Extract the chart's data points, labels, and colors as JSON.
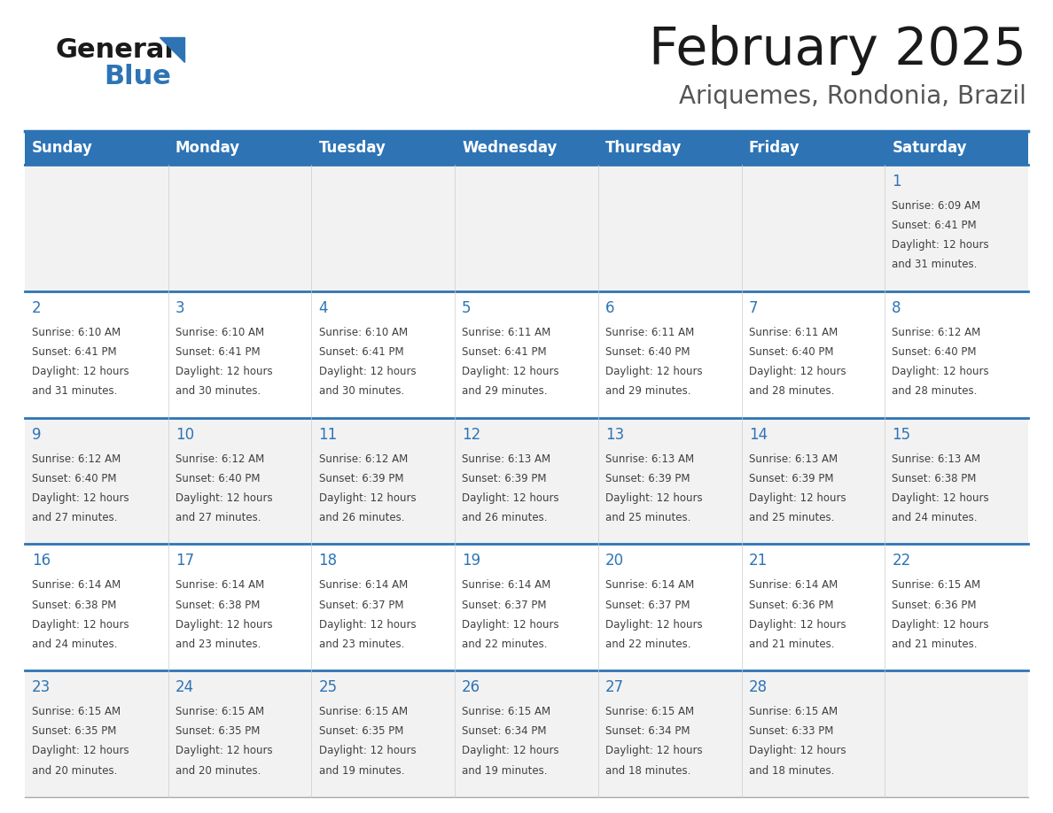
{
  "title": "February 2025",
  "subtitle": "Ariquemes, Rondonia, Brazil",
  "days_of_week": [
    "Sunday",
    "Monday",
    "Tuesday",
    "Wednesday",
    "Thursday",
    "Friday",
    "Saturday"
  ],
  "header_bg": "#2E74B5",
  "header_text": "#FFFFFF",
  "cell_bg_white": "#FFFFFF",
  "cell_bg_gray": "#F2F2F2",
  "border_color": "#2E74B5",
  "day_number_color": "#2E74B5",
  "text_color": "#404040",
  "title_color": "#1a1a1a",
  "subtitle_color": "#555555",
  "logo_general_color": "#1a1a1a",
  "logo_blue_color": "#2E74B5",
  "logo_triangle_color": "#2E74B5",
  "calendar_data": [
    [
      null,
      null,
      null,
      null,
      null,
      null,
      {
        "day": "1",
        "sunrise": "6:09 AM",
        "sunset": "6:41 PM",
        "dl1": "Daylight: 12 hours",
        "dl2": "and 31 minutes."
      }
    ],
    [
      {
        "day": "2",
        "sunrise": "6:10 AM",
        "sunset": "6:41 PM",
        "dl1": "Daylight: 12 hours",
        "dl2": "and 31 minutes."
      },
      {
        "day": "3",
        "sunrise": "6:10 AM",
        "sunset": "6:41 PM",
        "dl1": "Daylight: 12 hours",
        "dl2": "and 30 minutes."
      },
      {
        "day": "4",
        "sunrise": "6:10 AM",
        "sunset": "6:41 PM",
        "dl1": "Daylight: 12 hours",
        "dl2": "and 30 minutes."
      },
      {
        "day": "5",
        "sunrise": "6:11 AM",
        "sunset": "6:41 PM",
        "dl1": "Daylight: 12 hours",
        "dl2": "and 29 minutes."
      },
      {
        "day": "6",
        "sunrise": "6:11 AM",
        "sunset": "6:40 PM",
        "dl1": "Daylight: 12 hours",
        "dl2": "and 29 minutes."
      },
      {
        "day": "7",
        "sunrise": "6:11 AM",
        "sunset": "6:40 PM",
        "dl1": "Daylight: 12 hours",
        "dl2": "and 28 minutes."
      },
      {
        "day": "8",
        "sunrise": "6:12 AM",
        "sunset": "6:40 PM",
        "dl1": "Daylight: 12 hours",
        "dl2": "and 28 minutes."
      }
    ],
    [
      {
        "day": "9",
        "sunrise": "6:12 AM",
        "sunset": "6:40 PM",
        "dl1": "Daylight: 12 hours",
        "dl2": "and 27 minutes."
      },
      {
        "day": "10",
        "sunrise": "6:12 AM",
        "sunset": "6:40 PM",
        "dl1": "Daylight: 12 hours",
        "dl2": "and 27 minutes."
      },
      {
        "day": "11",
        "sunrise": "6:12 AM",
        "sunset": "6:39 PM",
        "dl1": "Daylight: 12 hours",
        "dl2": "and 26 minutes."
      },
      {
        "day": "12",
        "sunrise": "6:13 AM",
        "sunset": "6:39 PM",
        "dl1": "Daylight: 12 hours",
        "dl2": "and 26 minutes."
      },
      {
        "day": "13",
        "sunrise": "6:13 AM",
        "sunset": "6:39 PM",
        "dl1": "Daylight: 12 hours",
        "dl2": "and 25 minutes."
      },
      {
        "day": "14",
        "sunrise": "6:13 AM",
        "sunset": "6:39 PM",
        "dl1": "Daylight: 12 hours",
        "dl2": "and 25 minutes."
      },
      {
        "day": "15",
        "sunrise": "6:13 AM",
        "sunset": "6:38 PM",
        "dl1": "Daylight: 12 hours",
        "dl2": "and 24 minutes."
      }
    ],
    [
      {
        "day": "16",
        "sunrise": "6:14 AM",
        "sunset": "6:38 PM",
        "dl1": "Daylight: 12 hours",
        "dl2": "and 24 minutes."
      },
      {
        "day": "17",
        "sunrise": "6:14 AM",
        "sunset": "6:38 PM",
        "dl1": "Daylight: 12 hours",
        "dl2": "and 23 minutes."
      },
      {
        "day": "18",
        "sunrise": "6:14 AM",
        "sunset": "6:37 PM",
        "dl1": "Daylight: 12 hours",
        "dl2": "and 23 minutes."
      },
      {
        "day": "19",
        "sunrise": "6:14 AM",
        "sunset": "6:37 PM",
        "dl1": "Daylight: 12 hours",
        "dl2": "and 22 minutes."
      },
      {
        "day": "20",
        "sunrise": "6:14 AM",
        "sunset": "6:37 PM",
        "dl1": "Daylight: 12 hours",
        "dl2": "and 22 minutes."
      },
      {
        "day": "21",
        "sunrise": "6:14 AM",
        "sunset": "6:36 PM",
        "dl1": "Daylight: 12 hours",
        "dl2": "and 21 minutes."
      },
      {
        "day": "22",
        "sunrise": "6:15 AM",
        "sunset": "6:36 PM",
        "dl1": "Daylight: 12 hours",
        "dl2": "and 21 minutes."
      }
    ],
    [
      {
        "day": "23",
        "sunrise": "6:15 AM",
        "sunset": "6:35 PM",
        "dl1": "Daylight: 12 hours",
        "dl2": "and 20 minutes."
      },
      {
        "day": "24",
        "sunrise": "6:15 AM",
        "sunset": "6:35 PM",
        "dl1": "Daylight: 12 hours",
        "dl2": "and 20 minutes."
      },
      {
        "day": "25",
        "sunrise": "6:15 AM",
        "sunset": "6:35 PM",
        "dl1": "Daylight: 12 hours",
        "dl2": "and 19 minutes."
      },
      {
        "day": "26",
        "sunrise": "6:15 AM",
        "sunset": "6:34 PM",
        "dl1": "Daylight: 12 hours",
        "dl2": "and 19 minutes."
      },
      {
        "day": "27",
        "sunrise": "6:15 AM",
        "sunset": "6:34 PM",
        "dl1": "Daylight: 12 hours",
        "dl2": "and 18 minutes."
      },
      {
        "day": "28",
        "sunrise": "6:15 AM",
        "sunset": "6:33 PM",
        "dl1": "Daylight: 12 hours",
        "dl2": "and 18 minutes."
      },
      null
    ]
  ]
}
